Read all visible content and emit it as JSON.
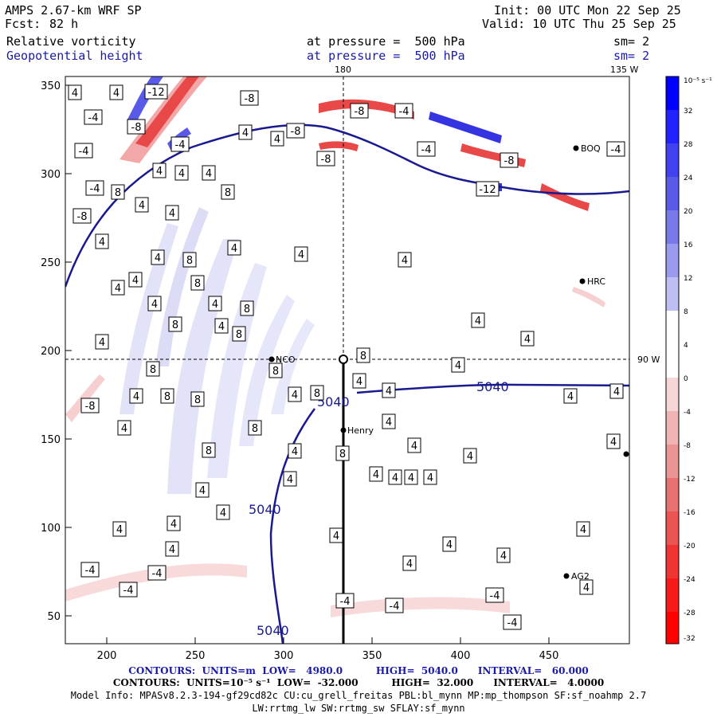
{
  "header": {
    "model": "AMPS 2.67-km WRF SP",
    "fcst_label": "Fcst:",
    "fcst_value": "82 h",
    "init": "Init: 00 UTC Mon 22 Sep 25",
    "valid": "Valid: 10 UTC Thu 25 Sep 25",
    "field1": "Relative vorticity",
    "field1_level": "at pressure =  500 hPa",
    "field1_sm": "sm= 2",
    "field2": "Geopotential height",
    "field2_level": "at pressure =  500 hPa",
    "field2_sm": "sm= 2"
  },
  "map": {
    "x_ticks": [
      "200",
      "250",
      "300",
      "350",
      "400",
      "450"
    ],
    "y_ticks": [
      "350",
      "300",
      "250",
      "200",
      "150",
      "100",
      "50"
    ],
    "meridian_label_top": "180",
    "meridian_label_tr": "135 W",
    "parallel_label_right": "90 W",
    "stations": [
      {
        "name": "NCO"
      },
      {
        "name": "Henry"
      },
      {
        "name": "HRC"
      },
      {
        "name": "BOQ"
      },
      {
        "name": "AG2"
      }
    ],
    "height_contour_label": "5040",
    "vorticity_labels": [
      "4",
      "8",
      "-4",
      "-8",
      "-12"
    ]
  },
  "colorbar": {
    "unit": "10⁻⁵ s⁻¹",
    "ticks": [
      "32",
      "28",
      "24",
      "20",
      "16",
      "12",
      "8",
      "4",
      "0",
      "-4",
      "-8",
      "-12",
      "-16",
      "-20",
      "-24",
      "-28",
      "-32"
    ],
    "colors": [
      "#0000ff",
      "#2222ff",
      "#4141f0",
      "#5a5ae8",
      "#7979e8",
      "#9a9aee",
      "#bebef4",
      "#ffffff",
      "#ffffff",
      "#f6d6d6",
      "#f0b4b4",
      "#ea9494",
      "#e87272",
      "#ec5454",
      "#f03434",
      "#f61a1a",
      "#ff0000"
    ]
  },
  "footer": {
    "line1": "CONTOURS:  UNITS=m  LOW=   4980.0          HIGH=  5040.0      INTERVAL=   60.000",
    "line2": "CONTOURS:  UNITS=10⁻⁵ s⁻¹  LOW=  -32.000          HIGH=  32.000      INTERVAL=   4.0000",
    "line3": "Model Info: MPASv8.2.3-194-gf29cd82c CU:cu_grell_freitas PBL:bl_mynn MP:mp_thompson SF:sf_noahmp 2.7",
    "line4": "LW:rrtmg_lw SW:rrtmg_sw SFLAY:sf_mynn"
  }
}
